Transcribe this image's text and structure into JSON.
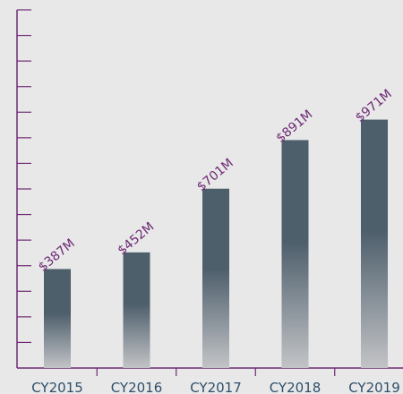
{
  "chart_data": {
    "type": "bar",
    "categories": [
      "CY2015",
      "CY2016",
      "CY2017",
      "CY2018",
      "CY2019"
    ],
    "values": [
      387,
      452,
      701,
      891,
      971
    ],
    "value_labels": [
      "$387M",
      "$452M",
      "$701M",
      "$891M",
      "$971M"
    ],
    "title": "",
    "xlabel": "",
    "ylabel": "",
    "ylim": [
      0,
      1400
    ],
    "grid": false,
    "colors": {
      "axis": "#6e2a73",
      "bar_top": "#4e5f6c",
      "bar_bottom": "#c2c3c6",
      "data_label": "#6e2a73",
      "tick_label": "#2e4f6b"
    }
  }
}
